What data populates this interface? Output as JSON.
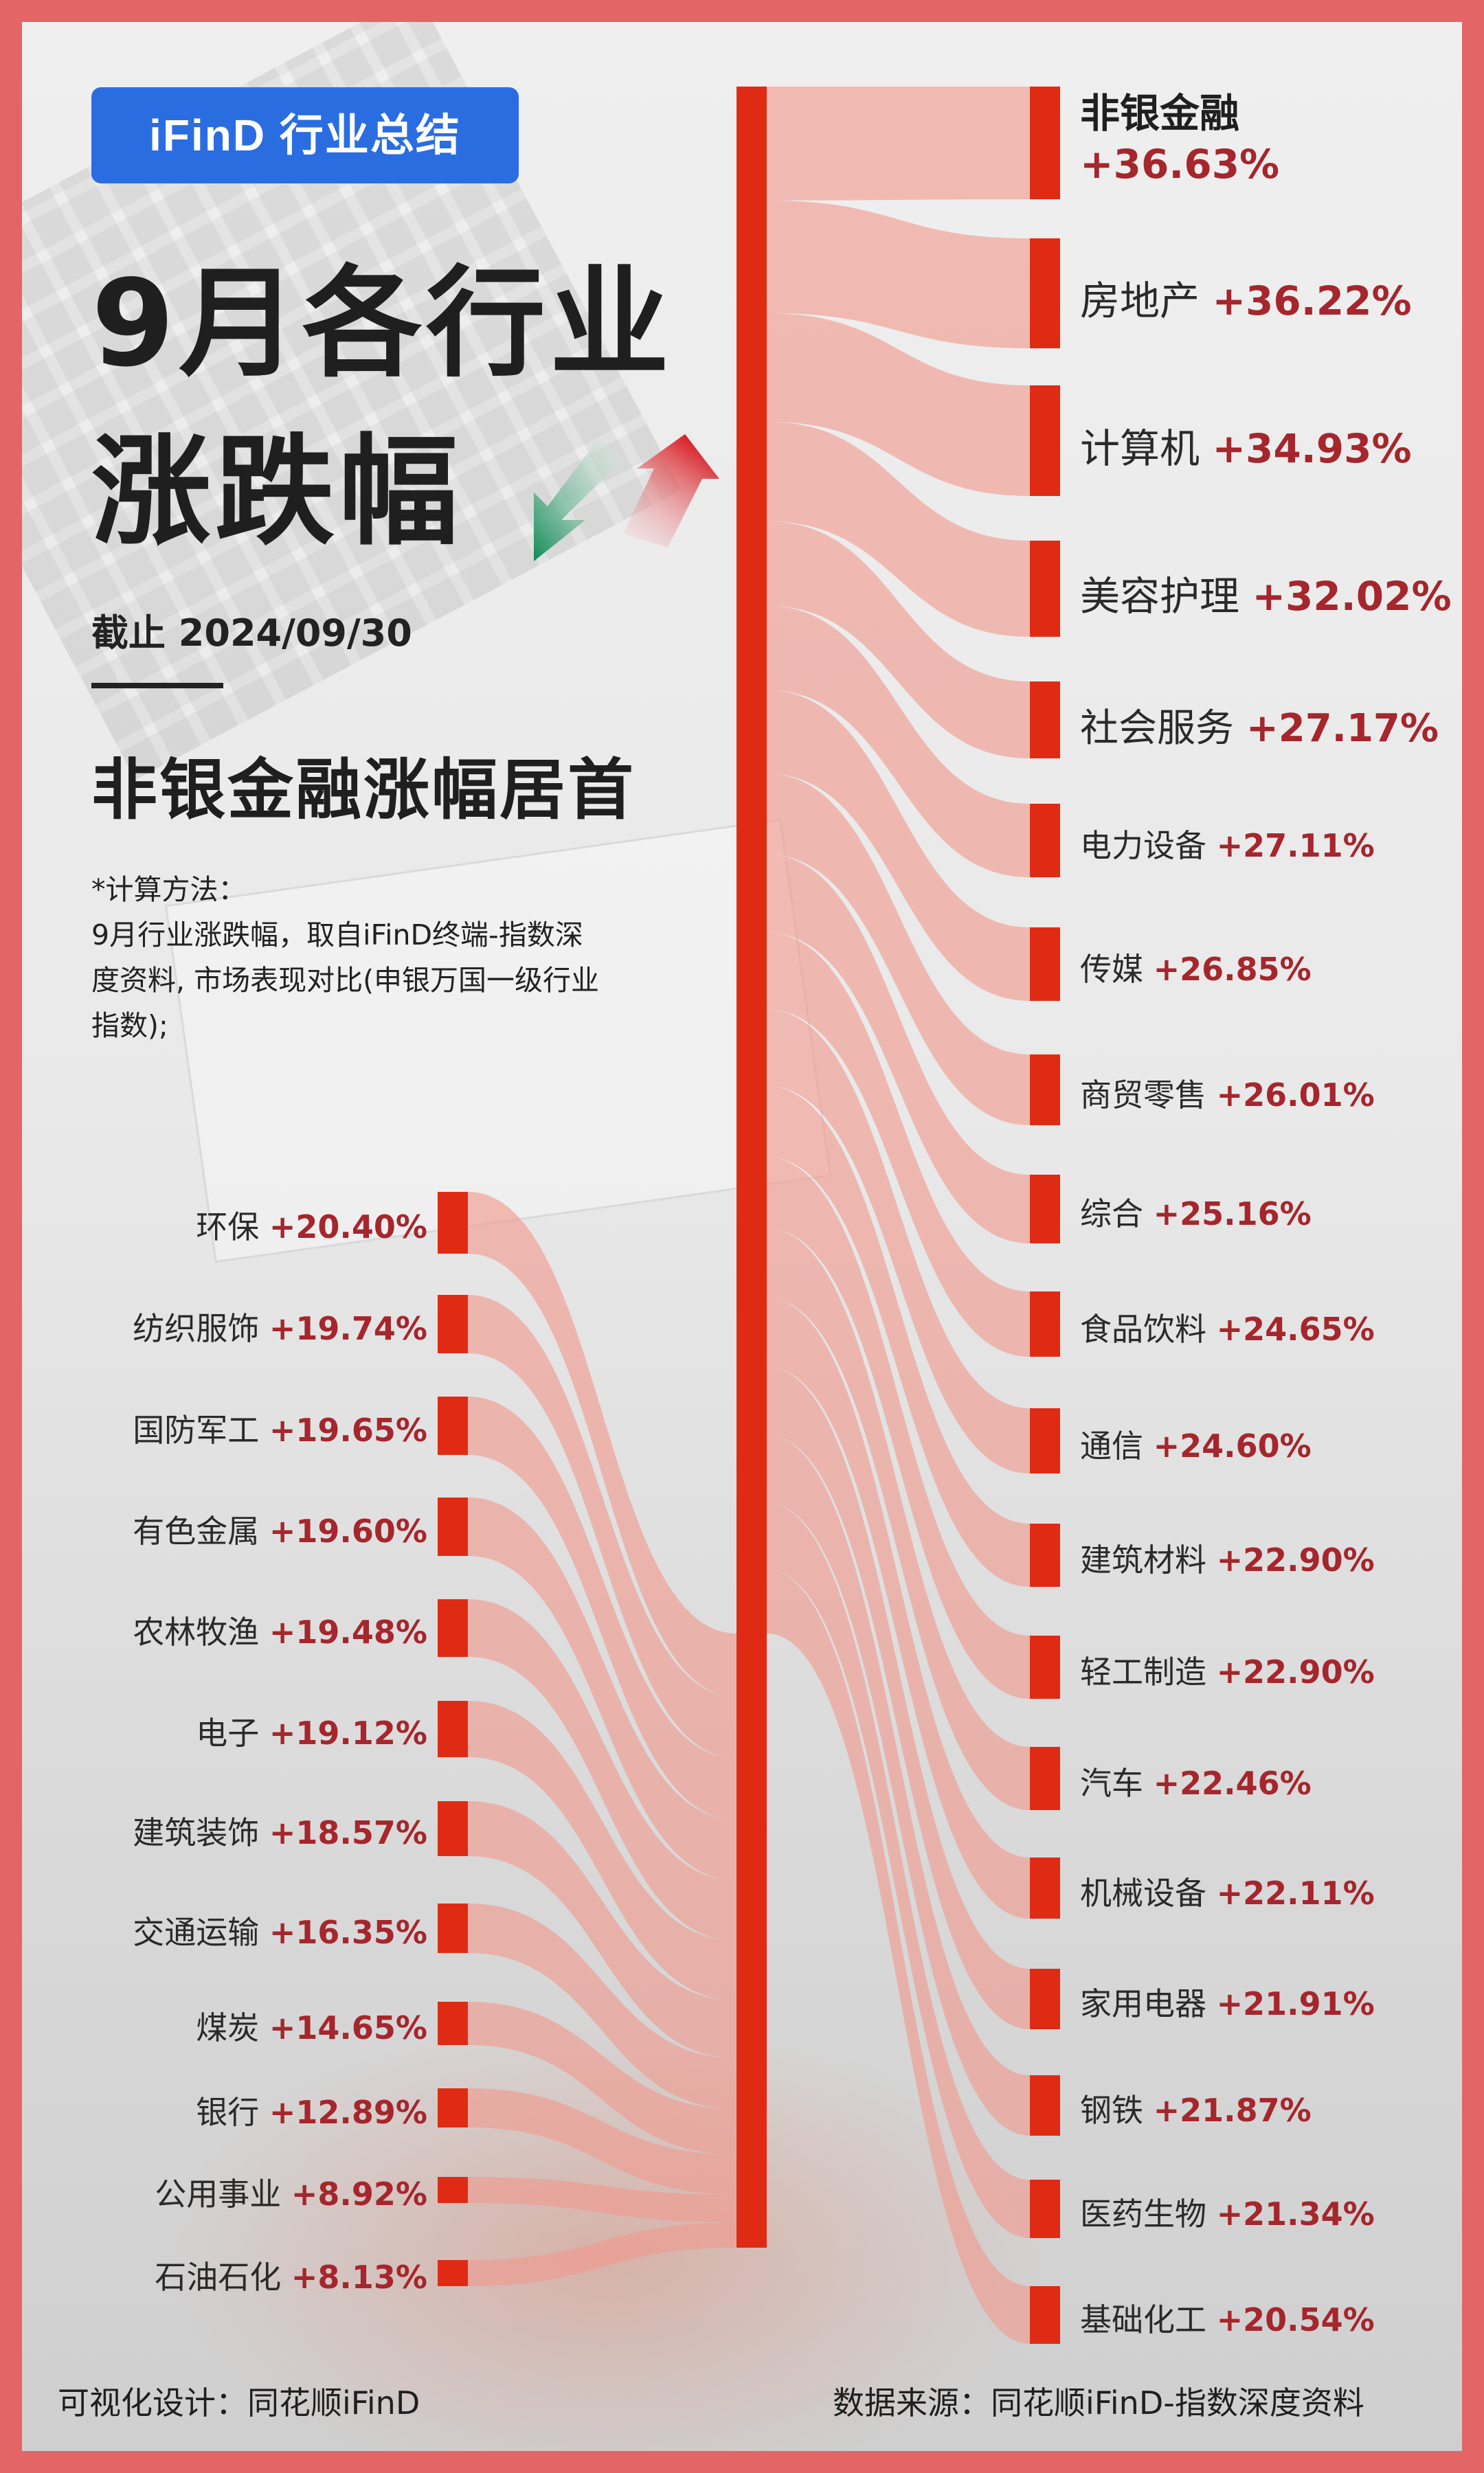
{
  "badge": "iFinD 行业总结",
  "title_line1": "9月各行业",
  "title_line2": "涨跌幅",
  "date": "截止 2024/09/30",
  "headline": "非银金融涨幅居首",
  "method": [
    "*计算方法：",
    "9月行业涨跌幅，取自iFinD终端-指数深",
    "度资料, 市场表现对比(申银万国一级行业",
    "指数);"
  ],
  "footer_left": "可视化设计：同花顺iFinD",
  "footer_right": "数据来源：同花顺iFinD-指数深度资料",
  "colors": {
    "bar": "#e02b14",
    "flow": "#f09a8e",
    "pct": "#a5262c",
    "badge": "#2a6de0",
    "border": "#e36565"
  },
  "icons": [
    "down-arrow-icon-green",
    "up-arrow-icon-red"
  ],
  "chart_data": {
    "type": "sankey",
    "unit": "%",
    "right": [
      {
        "name": "非银金融",
        "value": 36.63,
        "label": "+36.63%"
      },
      {
        "name": "房地产",
        "value": 36.22,
        "label": "+36.22%"
      },
      {
        "name": "计算机",
        "value": 34.93,
        "label": "+34.93%"
      },
      {
        "name": "美容护理",
        "value": 32.02,
        "label": "+32.02%"
      },
      {
        "name": "社会服务",
        "value": 27.17,
        "label": "+27.17%"
      },
      {
        "name": "电力设备",
        "value": 27.11,
        "label": "+27.11%"
      },
      {
        "name": "传媒",
        "value": 26.85,
        "label": "+26.85%"
      },
      {
        "name": "商贸零售",
        "value": 26.01,
        "label": "+26.01%"
      },
      {
        "name": "综合",
        "value": 25.16,
        "label": "+25.16%"
      },
      {
        "name": "食品饮料",
        "value": 24.65,
        "label": "+24.65%"
      },
      {
        "name": "通信",
        "value": 24.6,
        "label": "+24.60%"
      },
      {
        "name": "建筑材料",
        "value": 22.9,
        "label": "+22.90%"
      },
      {
        "name": "轻工制造",
        "value": 22.9,
        "label": "+22.90%"
      },
      {
        "name": "汽车",
        "value": 22.46,
        "label": "+22.46%"
      },
      {
        "name": "机械设备",
        "value": 22.11,
        "label": "+22.11%"
      },
      {
        "name": "家用电器",
        "value": 21.91,
        "label": "+21.91%"
      },
      {
        "name": "钢铁",
        "value": 21.87,
        "label": "+21.87%"
      },
      {
        "name": "医药生物",
        "value": 21.34,
        "label": "+21.34%"
      },
      {
        "name": "基础化工",
        "value": 20.54,
        "label": "+20.54%"
      }
    ],
    "left": [
      {
        "name": "环保",
        "value": 20.4,
        "label": "+20.40%"
      },
      {
        "name": "纺织服饰",
        "value": 19.74,
        "label": "+19.74%"
      },
      {
        "name": "国防军工",
        "value": 19.65,
        "label": "+19.65%"
      },
      {
        "name": "有色金属",
        "value": 19.6,
        "label": "+19.60%"
      },
      {
        "name": "农林牧渔",
        "value": 19.48,
        "label": "+19.48%"
      },
      {
        "name": "电子",
        "value": 19.12,
        "label": "+19.12%"
      },
      {
        "name": "建筑装饰",
        "value": 18.57,
        "label": "+18.57%"
      },
      {
        "name": "交通运输",
        "value": 16.35,
        "label": "+16.35%"
      },
      {
        "name": "煤炭",
        "value": 14.65,
        "label": "+14.65%"
      },
      {
        "name": "银行",
        "value": 12.89,
        "label": "+12.89%"
      },
      {
        "name": "公用事业",
        "value": 8.92,
        "label": "+8.92%"
      },
      {
        "name": "石油石化",
        "value": 8.13,
        "label": "+8.13%"
      }
    ]
  }
}
